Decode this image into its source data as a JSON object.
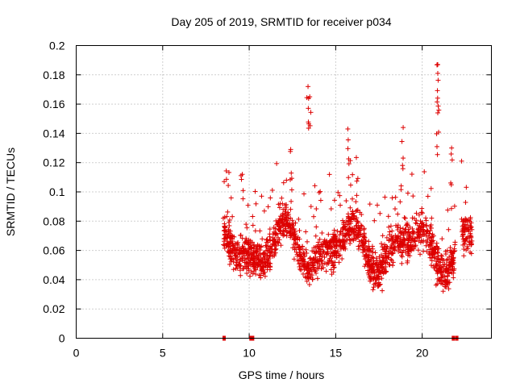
{
  "chart_data": {
    "type": "scatter",
    "title": "Day 205 of 2019, SRMTID for receiver p034",
    "xlabel": "GPS time / hours",
    "ylabel": "SRMTID / TECUs",
    "xlim": [
      0,
      24
    ],
    "ylim": [
      0,
      0.2
    ],
    "xticks": [
      "0",
      "5",
      "10",
      "15",
      "20"
    ],
    "yticks": [
      "0",
      "0.02",
      "0.04",
      "0.06",
      "0.08",
      "0.1",
      "0.12",
      "0.14",
      "0.16",
      "0.18",
      "0.2"
    ],
    "grid": true,
    "series": [
      {
        "name": "SRMTID",
        "color": "#dd0000",
        "marker": "plus",
        "x_range": [
          8.5,
          22.9
        ],
        "typical_range": [
          0.02,
          0.11
        ],
        "peaks": [
          {
            "x": 9.6,
            "y": 0.112
          },
          {
            "x": 12.4,
            "y": 0.129
          },
          {
            "x": 13.4,
            "y": 0.172
          },
          {
            "x": 13.5,
            "y": 0.165
          },
          {
            "x": 15.7,
            "y": 0.143
          },
          {
            "x": 18.9,
            "y": 0.144
          },
          {
            "x": 20.9,
            "y": 0.187
          },
          {
            "x": 20.9,
            "y": 0.181
          },
          {
            "x": 20.9,
            "y": 0.154
          },
          {
            "x": 21.7,
            "y": 0.13
          }
        ],
        "zero_points": [
          8.55,
          10.1,
          10.2,
          21.8,
          22.0
        ]
      }
    ]
  }
}
